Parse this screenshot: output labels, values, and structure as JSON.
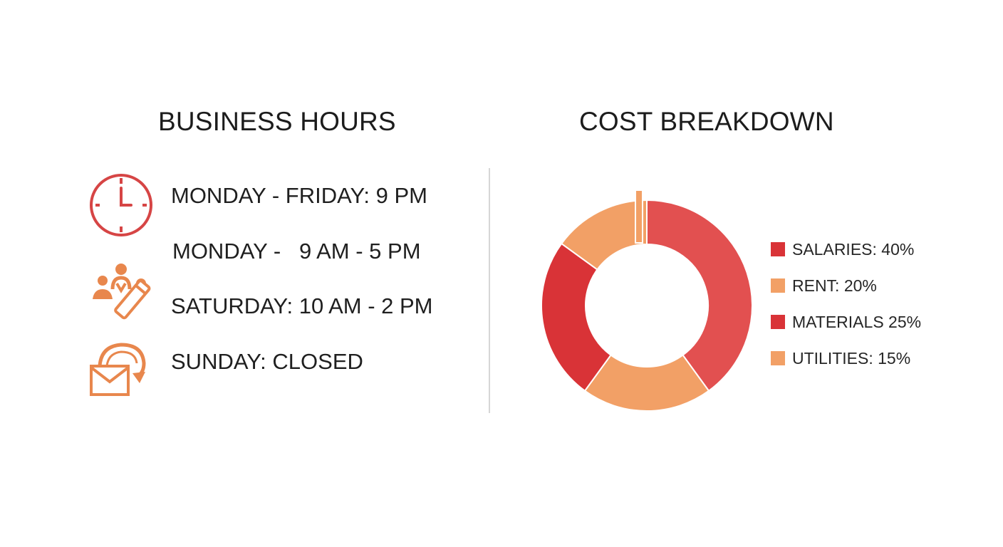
{
  "business_hours": {
    "title": "BUSINESS HOURS",
    "rows": [
      "MONDAY - FRIDAY: 9 PM",
      "MONDAY -   9 AM - 5 PM",
      "SATURDAY: 10 AM - 2 PM",
      "SUNDAY: CLOSED"
    ],
    "icons": [
      "clock-icon",
      "team-edit-icon",
      "mail-return-icon"
    ]
  },
  "colors": {
    "red": "#d93337",
    "orange": "#f2a066",
    "icon_red": "#d64545",
    "icon_orange": "#e8874d"
  },
  "chart_data": {
    "type": "pie",
    "title": "COST BREAKDOWN",
    "donut": true,
    "legend_position": "right",
    "categories": [
      "SALARIES: 40%",
      "RENT: 20%",
      "MATERIALS 25%",
      "UTILITIES: 15%"
    ],
    "values": [
      40,
      20,
      25,
      15
    ],
    "segments": [
      {
        "color": "#e25050",
        "value": 40
      },
      {
        "color": "#f2a066",
        "value": 20
      },
      {
        "color": "#d93337",
        "value": 25
      },
      {
        "color": "#f2a066",
        "value": 15
      }
    ],
    "legend": [
      {
        "label": "SALARIES: 40%",
        "color": "#d93337"
      },
      {
        "label": "RENT: 20%",
        "color": "#f2a066"
      },
      {
        "label": "MATERIALS 25%",
        "color": "#d93337"
      },
      {
        "label": "UTILITIES: 15%",
        "color": "#f2a066"
      }
    ]
  }
}
